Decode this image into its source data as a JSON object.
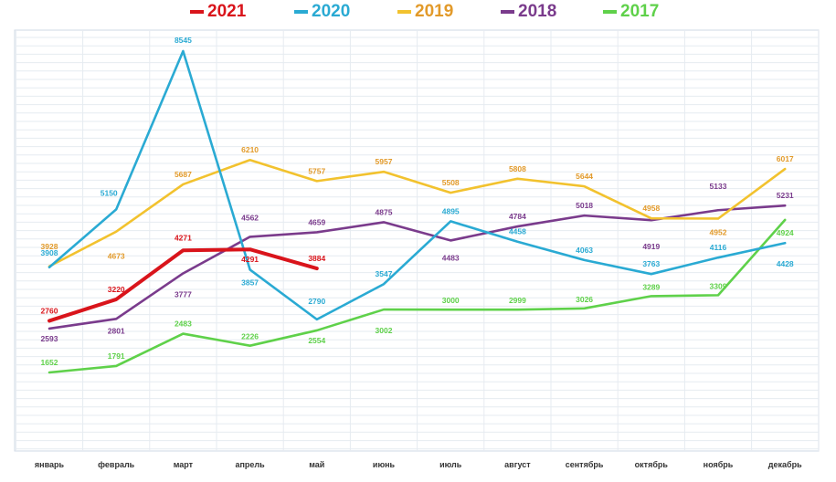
{
  "chart_data": {
    "type": "line",
    "categories": [
      "январь",
      "февраль",
      "март",
      "апрель",
      "май",
      "июнь",
      "июль",
      "август",
      "сентябрь",
      "октябрь",
      "ноябрь",
      "декабрь"
    ],
    "ylim": [
      0,
      9000
    ],
    "grid": true,
    "legend_position": "top",
    "series": [
      {
        "name": "2021",
        "color": "#d9141b",
        "values": [
          2760,
          3220,
          4271,
          4291,
          3884,
          null,
          null,
          null,
          null,
          null,
          null,
          null
        ],
        "labels": [
          "2760",
          "3220",
          "4271",
          "4291",
          "3884",
          null,
          null,
          null,
          null,
          null,
          null,
          null
        ]
      },
      {
        "name": "2020",
        "color": "#2aaad3",
        "values": [
          3908,
          5150,
          8545,
          3857,
          2790,
          3547,
          4895,
          4458,
          4063,
          3763,
          4116,
          4428
        ],
        "labels": [
          "3908",
          "5150",
          "8545",
          "3857",
          "2790",
          "3547",
          "4895",
          "4458",
          "4063",
          "3763",
          "4116",
          "4428"
        ]
      },
      {
        "name": "2019",
        "color": "#f2c22e",
        "values": [
          3928,
          4673,
          5687,
          6210,
          5757,
          5957,
          5508,
          5808,
          5644,
          4958,
          4952,
          6017
        ],
        "labels": [
          "3928",
          "4673",
          "5687",
          "6210",
          "5757",
          "5957",
          "5508",
          "5808",
          "5644",
          "4958",
          "4952",
          "6017"
        ]
      },
      {
        "name": "2018",
        "color": "#7a3b8c",
        "values": [
          2593,
          2801,
          3777,
          4562,
          4659,
          4875,
          4483,
          4784,
          5018,
          4919,
          5133,
          5231
        ],
        "labels": [
          "2593",
          "2801",
          "3777",
          "4562",
          "4659",
          "4875",
          "4483",
          "4784",
          "5018",
          "4919",
          "5133",
          "5231"
        ]
      },
      {
        "name": "2017",
        "color": "#5fd14a",
        "values": [
          1652,
          1791,
          2483,
          2226,
          2554,
          3002,
          3000,
          2999,
          3026,
          3289,
          3309,
          4924
        ],
        "labels": [
          "1652",
          "1791",
          "2483",
          "2226",
          "2554",
          "3002",
          "3000",
          "2999",
          "3026",
          "3289",
          "3309",
          "4924"
        ]
      }
    ],
    "legend": [
      {
        "label": "2021",
        "color": "#d9141b",
        "text_color": "#d9141b"
      },
      {
        "label": "2020",
        "color": "#2aaad3",
        "text_color": "#2aaad3"
      },
      {
        "label": "2019",
        "color": "#f2c22e",
        "text_color": "#e29a2a"
      },
      {
        "label": "2018",
        "color": "#7a3b8c",
        "text_color": "#7a3b8c"
      },
      {
        "label": "2017",
        "color": "#5fd14a",
        "text_color": "#5fd14a"
      }
    ]
  }
}
